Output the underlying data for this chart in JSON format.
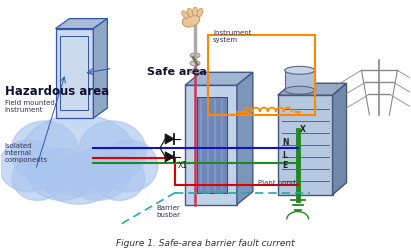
{
  "title": "Figure 1. Safe-area barrier fault current",
  "bg_color": "#ffffff",
  "hazardous_text": "Hazardous area",
  "safe_text": "Safe area",
  "field_instrument_text": "Field mounted\ninstrument",
  "isolated_text": "Isolated\ninternal\ncomponents",
  "barrier_busbar_text": "Barrier\nbusbar",
  "plant_bond_text": "Plant bond",
  "instrument_system_text": "Instrument\nsystem",
  "x1_text": "X1",
  "n_text": "N",
  "l_text": "L",
  "e_text": "E",
  "x_text": "X",
  "cloud_color": "#aac5ee",
  "cloud_edge_color": "#7799cc",
  "wire_red": "#dd0000",
  "wire_blue": "#1111cc",
  "wire_green": "#228822",
  "wire_teal": "#22aaaa",
  "wire_orange": "#ff8800",
  "wire_pink": "#cc3355",
  "label_color": "#000000",
  "hazardous_label_color": "#000033"
}
